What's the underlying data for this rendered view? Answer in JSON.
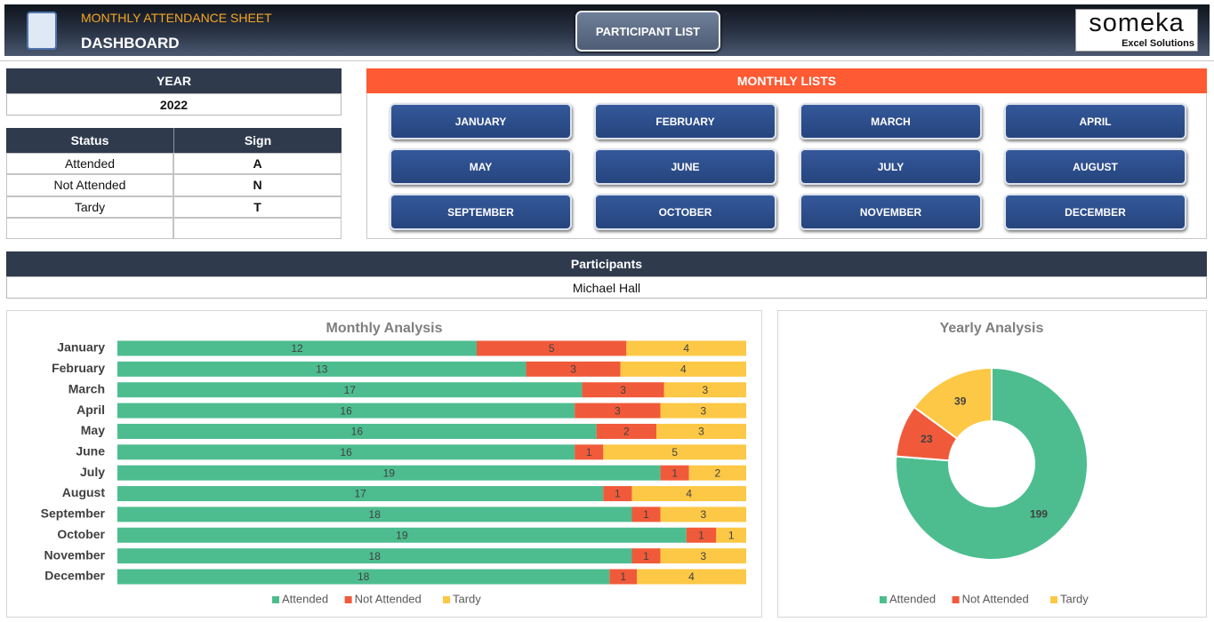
{
  "header": {
    "subtitle": "MONTHLY ATTENDANCE SHEET",
    "title": "DASHBOARD",
    "button": "PARTICIPANT LIST",
    "logo": "someka",
    "logo_tagline": "Excel Solutions"
  },
  "year": {
    "label": "YEAR",
    "value": "2022"
  },
  "status_table": {
    "columns": [
      "Status",
      "Sign"
    ],
    "rows": [
      [
        "Attended",
        "A"
      ],
      [
        "Not Attended",
        "N"
      ],
      [
        "Tardy",
        "T"
      ]
    ]
  },
  "monthly_lists": {
    "title": "MONTHLY LISTS",
    "buttons": [
      "JANUARY",
      "FEBRUARY",
      "MARCH",
      "APRIL",
      "MAY",
      "JUNE",
      "JULY",
      "AUGUST",
      "SEPTEMBER",
      "OCTOBER",
      "NOVEMBER",
      "DECEMBER"
    ]
  },
  "participants": {
    "label": "Participants",
    "value": "Michael Hall"
  },
  "chart_data": [
    {
      "type": "bar",
      "orientation": "horizontal",
      "stack": "percent",
      "title": "Monthly Analysis",
      "categories": [
        "January",
        "February",
        "March",
        "April",
        "May",
        "June",
        "July",
        "August",
        "September",
        "October",
        "November",
        "December"
      ],
      "series": [
        {
          "name": "Attended",
          "color": "#4dbd8f",
          "values": [
            12,
            13,
            17,
            16,
            16,
            16,
            19,
            17,
            18,
            19,
            18,
            18
          ]
        },
        {
          "name": "Not Attended",
          "color": "#f05a3a",
          "values": [
            5,
            3,
            3,
            3,
            2,
            1,
            1,
            1,
            1,
            1,
            1,
            1
          ]
        },
        {
          "name": "Tardy",
          "color": "#fcc845",
          "values": [
            4,
            4,
            3,
            3,
            3,
            5,
            2,
            4,
            3,
            1,
            3,
            4
          ]
        }
      ],
      "legend": "bottom"
    },
    {
      "type": "pie",
      "donut": true,
      "title": "Yearly Analysis",
      "categories": [
        "Attended",
        "Not Attended",
        "Tardy"
      ],
      "values": [
        199,
        23,
        39
      ],
      "colors": [
        "#4dbd8f",
        "#f05a3a",
        "#fcc845"
      ],
      "legend": "bottom"
    }
  ]
}
